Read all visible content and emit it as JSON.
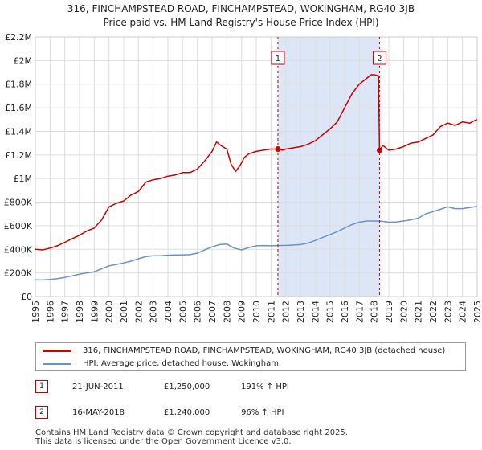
{
  "title_line1": "316, FINCHAMPSTEAD ROAD, FINCHAMPSTEAD, WOKINGHAM, RG40 3JB",
  "title_line2": "Price paid vs. HM Land Registry's House Price Index (HPI)",
  "legend": {
    "red_label": "316, FINCHAMPSTEAD ROAD, FINCHAMPSTEAD, WOKINGHAM, RG40 3JB (detached house)",
    "blue_label": "HPI: Average price, detached house, Wokingham"
  },
  "sales": [
    {
      "num": "1",
      "date": "21-JUN-2011",
      "price": "£1,250,000",
      "hpi": "191% ↑ HPI"
    },
    {
      "num": "2",
      "date": "16-MAY-2018",
      "price": "£1,240,000",
      "hpi": "96% ↑ HPI"
    }
  ],
  "footer": {
    "line1": "Contains HM Land Registry data © Crown copyright and database right 2025.",
    "line2": "This data is licensed under the Open Government Licence v3.0."
  },
  "colors": {
    "red": "#cc0000",
    "blue": "#6a93c8",
    "shade": "#dde6f6",
    "grid": "#dddddd"
  },
  "chart_data": {
    "type": "line",
    "title": "Price paid vs. HM Land Registry's House Price Index (HPI)",
    "xlim": [
      1995,
      2025
    ],
    "ylim": [
      0,
      2200000
    ],
    "x_ticks": [
      "1995",
      "1996",
      "1997",
      "1998",
      "1999",
      "2000",
      "2001",
      "2002",
      "2003",
      "2004",
      "2005",
      "2006",
      "2007",
      "2008",
      "2009",
      "2010",
      "2011",
      "2012",
      "2013",
      "2014",
      "2015",
      "2016",
      "2017",
      "2018",
      "2019",
      "2020",
      "2021",
      "2022",
      "2023",
      "2024",
      "2025"
    ],
    "y_ticks": [
      {
        "value": 0,
        "label": "£0"
      },
      {
        "value": 200000,
        "label": "£200K"
      },
      {
        "value": 400000,
        "label": "£400K"
      },
      {
        "value": 600000,
        "label": "£600K"
      },
      {
        "value": 800000,
        "label": "£800K"
      },
      {
        "value": 1000000,
        "label": "£1M"
      },
      {
        "value": 1200000,
        "label": "£1.2M"
      },
      {
        "value": 1400000,
        "label": "£1.4M"
      },
      {
        "value": 1600000,
        "label": "£1.6M"
      },
      {
        "value": 1800000,
        "label": "£1.8M"
      },
      {
        "value": 2000000,
        "label": "£2M"
      },
      {
        "value": 2200000,
        "label": "£2.2M"
      }
    ],
    "shaded_range": [
      2011.47,
      2018.37
    ],
    "series": [
      {
        "name": "316, FINCHAMPSTEAD ROAD, FINCHAMPSTEAD, WOKINGHAM, RG40 3JB (detached house)",
        "color": "#cc0000",
        "x": [
          1995.0,
          1995.5,
          1996.0,
          1996.5,
          1997.0,
          1997.5,
          1998.0,
          1998.5,
          1999.0,
          1999.5,
          2000.0,
          2000.5,
          2001.0,
          2001.5,
          2002.0,
          2002.5,
          2003.0,
          2003.5,
          2004.0,
          2004.5,
          2005.0,
          2005.5,
          2006.0,
          2006.5,
          2007.0,
          2007.3,
          2007.6,
          2008.0,
          2008.3,
          2008.6,
          2008.9,
          2009.2,
          2009.5,
          2010.0,
          2010.5,
          2011.0,
          2011.47,
          2011.8,
          2012.0,
          2012.5,
          2013.0,
          2013.5,
          2014.0,
          2014.5,
          2015.0,
          2015.5,
          2016.0,
          2016.5,
          2017.0,
          2017.5,
          2017.8,
          2018.0,
          2018.3,
          2018.37,
          2018.6,
          2019.0,
          2019.5,
          2020.0,
          2020.5,
          2021.0,
          2021.5,
          2022.0,
          2022.5,
          2023.0,
          2023.5,
          2024.0,
          2024.5,
          2024.8,
          2025.0
        ],
        "y": [
          400000,
          395000,
          410000,
          430000,
          460000,
          490000,
          520000,
          555000,
          580000,
          650000,
          760000,
          790000,
          810000,
          860000,
          890000,
          970000,
          990000,
          1000000,
          1020000,
          1030000,
          1050000,
          1050000,
          1080000,
          1150000,
          1230000,
          1310000,
          1280000,
          1250000,
          1120000,
          1060000,
          1110000,
          1180000,
          1210000,
          1230000,
          1240000,
          1250000,
          1250000,
          1240000,
          1250000,
          1260000,
          1270000,
          1290000,
          1320000,
          1370000,
          1420000,
          1480000,
          1600000,
          1720000,
          1800000,
          1850000,
          1880000,
          1880000,
          1870000,
          1240000,
          1280000,
          1240000,
          1250000,
          1270000,
          1300000,
          1310000,
          1340000,
          1370000,
          1440000,
          1470000,
          1450000,
          1480000,
          1470000,
          1490000,
          1500000
        ]
      },
      {
        "name": "HPI: Average price, detached house, Wokingham",
        "color": "#6a93c8",
        "x": [
          1995.0,
          1995.5,
          1996.0,
          1996.5,
          1997.0,
          1997.5,
          1998.0,
          1998.5,
          1999.0,
          1999.5,
          2000.0,
          2000.5,
          2001.0,
          2001.5,
          2002.0,
          2002.5,
          2003.0,
          2003.5,
          2004.0,
          2004.5,
          2005.0,
          2005.5,
          2006.0,
          2006.5,
          2007.0,
          2007.5,
          2008.0,
          2008.5,
          2009.0,
          2009.5,
          2010.0,
          2010.5,
          2011.0,
          2011.5,
          2012.0,
          2012.5,
          2013.0,
          2013.5,
          2014.0,
          2014.5,
          2015.0,
          2015.5,
          2016.0,
          2016.5,
          2017.0,
          2017.5,
          2018.0,
          2018.5,
          2019.0,
          2019.5,
          2020.0,
          2020.5,
          2021.0,
          2021.5,
          2022.0,
          2022.5,
          2023.0,
          2023.5,
          2024.0,
          2024.5,
          2025.0
        ],
        "y": [
          140000,
          140000,
          145000,
          152000,
          162000,
          175000,
          190000,
          200000,
          210000,
          235000,
          260000,
          272000,
          285000,
          300000,
          320000,
          338000,
          345000,
          345000,
          350000,
          352000,
          352000,
          355000,
          368000,
          395000,
          420000,
          440000,
          445000,
          410000,
          395000,
          415000,
          430000,
          432000,
          430000,
          432000,
          433000,
          436000,
          440000,
          452000,
          475000,
          500000,
          525000,
          550000,
          580000,
          610000,
          630000,
          640000,
          640000,
          638000,
          630000,
          632000,
          640000,
          650000,
          665000,
          700000,
          720000,
          740000,
          760000,
          745000,
          745000,
          755000,
          765000
        ]
      }
    ],
    "sale_markers": [
      {
        "label": "1",
        "x": 2011.47,
        "y": 1250000
      },
      {
        "label": "2",
        "x": 2018.37,
        "y": 1240000
      }
    ]
  }
}
